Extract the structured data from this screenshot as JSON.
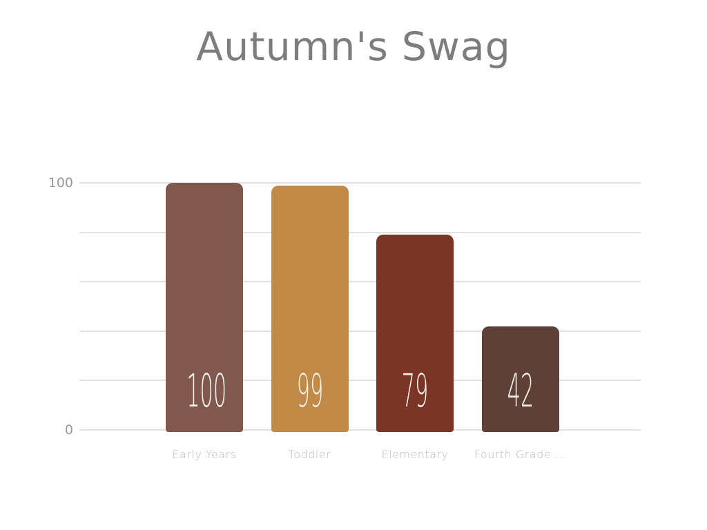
{
  "title": "Autumn's Swag",
  "colors": {
    "background": "#ffffff",
    "title_text": "#7d7d7d",
    "gridline": "#e1e1e1",
    "ytick_text": "#999999",
    "category_text": "#b9b9b9",
    "value_label_text": "#f7f2ea"
  },
  "chart_data": {
    "type": "bar",
    "title": "Autumn's Swag",
    "categories": [
      "Early Years",
      "Toddler",
      "Elementary",
      "Fourth Grade …"
    ],
    "values": [
      100,
      99,
      79,
      42
    ],
    "value_labels": [
      "100",
      "99",
      "79",
      "42"
    ],
    "bar_colors": [
      "#80584d",
      "#c18a46",
      "#7b3526",
      "#5f4037"
    ],
    "xlabel": "",
    "ylabel": "",
    "ylim": [
      0,
      100
    ],
    "gridline_step": 20,
    "grid": true,
    "legend": false,
    "ytick_values": [
      100,
      0
    ],
    "ytick_labels": [
      "100",
      "0"
    ]
  }
}
